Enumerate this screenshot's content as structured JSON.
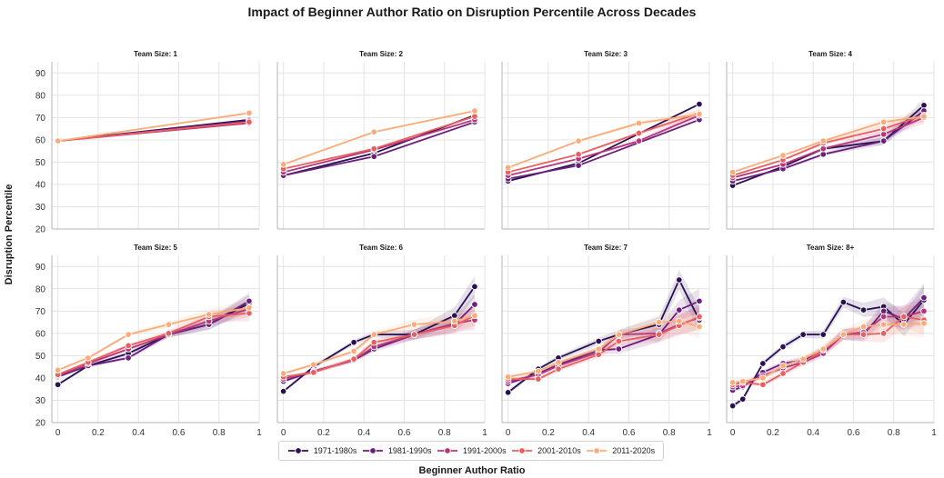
{
  "chart_data": {
    "type": "line",
    "title": "Impact of Beginner Author Ratio on Disruption Percentile Across Decades",
    "xlabel": "Beginner Author Ratio",
    "ylabel": "Disruption Percentile",
    "xlim": [
      -0.03,
      1
    ],
    "ylim": [
      20,
      95
    ],
    "x_ticks": [
      "0",
      "0.2",
      "0.4",
      "0.6",
      "0.8",
      "1"
    ],
    "x_tick_values": [
      0,
      0.2,
      0.4,
      0.6,
      0.8,
      1
    ],
    "y_ticks": [
      "20",
      "30",
      "40",
      "50",
      "60",
      "70",
      "80",
      "90"
    ],
    "y_tick_values": [
      20,
      30,
      40,
      50,
      60,
      70,
      80,
      90
    ],
    "grid": true,
    "legend_position": "bottom-center",
    "series_names": [
      "1971-1980s",
      "1981-1990s",
      "1991-2000s",
      "2001-2010s",
      "2011-2020s"
    ],
    "series_colors": [
      "#2a1052",
      "#6a1f7c",
      "#b8357a",
      "#e95e5e",
      "#fbab77"
    ],
    "panels": [
      {
        "title": "Team Size: 1",
        "series": [
          {
            "name": "1971-1980s",
            "x": [
              0,
              0.95
            ],
            "y": [
              59.5,
              69
            ]
          },
          {
            "name": "1981-1990s",
            "x": [
              0,
              0.95
            ],
            "y": [
              59.5,
              68.5
            ]
          },
          {
            "name": "1991-2000s",
            "x": [
              0,
              0.95
            ],
            "y": [
              59.5,
              67.5
            ]
          },
          {
            "name": "2001-2010s",
            "x": [
              0,
              0.95
            ],
            "y": [
              59.5,
              68
            ]
          },
          {
            "name": "2011-2020s",
            "x": [
              0,
              0.95
            ],
            "y": [
              59.5,
              72
            ]
          }
        ]
      },
      {
        "title": "Team Size: 2",
        "series": [
          {
            "name": "1971-1980s",
            "x": [
              0,
              0.45,
              0.95
            ],
            "y": [
              44,
              54,
              71
            ]
          },
          {
            "name": "1981-1990s",
            "x": [
              0,
              0.45,
              0.95
            ],
            "y": [
              44,
              52.5,
              68
            ]
          },
          {
            "name": "1991-2000s",
            "x": [
              0,
              0.45,
              0.95
            ],
            "y": [
              45.5,
              55.5,
              69
            ]
          },
          {
            "name": "2001-2010s",
            "x": [
              0,
              0.45,
              0.95
            ],
            "y": [
              47,
              56,
              70.5
            ]
          },
          {
            "name": "2011-2020s",
            "x": [
              0,
              0.45,
              0.95
            ],
            "y": [
              49,
              63.5,
              73
            ]
          }
        ]
      },
      {
        "title": "Team Size: 3",
        "series": [
          {
            "name": "1971-1980s",
            "x": [
              0,
              0.35,
              0.95
            ],
            "y": [
              41.5,
              49.5,
              76
            ]
          },
          {
            "name": "1981-1990s",
            "x": [
              0,
              0.35,
              0.95
            ],
            "y": [
              42.5,
              48.5,
              69
            ]
          },
          {
            "name": "1991-2000s",
            "x": [
              0,
              0.35,
              0.65,
              0.95
            ],
            "y": [
              44,
              51.5,
              59.5,
              71
            ]
          },
          {
            "name": "2001-2010s",
            "x": [
              0,
              0.35,
              0.65,
              0.95
            ],
            "y": [
              45.5,
              53.5,
              63,
              72
            ]
          },
          {
            "name": "2011-2020s",
            "x": [
              0,
              0.35,
              0.65,
              0.95
            ],
            "y": [
              47.5,
              59.5,
              67.5,
              71.5
            ]
          }
        ]
      },
      {
        "title": "Team Size: 4",
        "series": [
          {
            "name": "1971-1980s",
            "x": [
              0,
              0.25,
              0.45,
              0.75,
              0.95
            ],
            "y": [
              39.5,
              48,
              56,
              59.5,
              75.5
            ]
          },
          {
            "name": "1981-1990s",
            "x": [
              0,
              0.25,
              0.45,
              0.75,
              0.95
            ],
            "y": [
              41.5,
              47,
              53.5,
              59.5,
              73
            ]
          },
          {
            "name": "1991-2000s",
            "x": [
              0,
              0.25,
              0.45,
              0.75,
              0.95
            ],
            "y": [
              43,
              49,
              56,
              62.5,
              70
            ]
          },
          {
            "name": "2001-2010s",
            "x": [
              0,
              0.25,
              0.45,
              0.75,
              0.95
            ],
            "y": [
              44,
              51,
              58.5,
              65,
              71
            ]
          },
          {
            "name": "2011-2020s",
            "x": [
              0,
              0.25,
              0.45,
              0.75,
              0.95
            ],
            "y": [
              45.5,
              53,
              59.5,
              68,
              70.5
            ]
          }
        ]
      },
      {
        "title": "Team Size: 5",
        "series": [
          {
            "name": "1971-1980s",
            "x": [
              0,
              0.15,
              0.35,
              0.55,
              0.75,
              0.95
            ],
            "y": [
              37,
              45.5,
              51,
              59.5,
              64,
              73.5
            ]
          },
          {
            "name": "1981-1990s",
            "x": [
              0,
              0.15,
              0.35,
              0.55,
              0.75,
              0.95
            ],
            "y": [
              40.5,
              45.5,
              49,
              59.5,
              64,
              74.5
            ]
          },
          {
            "name": "1991-2000s",
            "x": [
              0,
              0.15,
              0.35,
              0.55,
              0.75,
              0.95
            ],
            "y": [
              41,
              46.5,
              53,
              59.5,
              65.5,
              71
            ]
          },
          {
            "name": "2001-2010s",
            "x": [
              0,
              0.15,
              0.35,
              0.55,
              0.75,
              0.95
            ],
            "y": [
              41.5,
              47,
              54.5,
              60,
              67.5,
              69
            ]
          },
          {
            "name": "2011-2020s",
            "x": [
              0,
              0.15,
              0.35,
              0.55,
              0.75,
              0.95
            ],
            "y": [
              43.5,
              49,
              59.5,
              64,
              68.5,
              71.5
            ]
          }
        ]
      },
      {
        "title": "Team Size: 6",
        "series": [
          {
            "name": "1971-1980s",
            "x": [
              0,
              0.15,
              0.35,
              0.45,
              0.65,
              0.85,
              0.95
            ],
            "y": [
              34,
              45,
              56,
              59.5,
              59.5,
              68,
              81
            ]
          },
          {
            "name": "1981-1990s",
            "x": [
              0,
              0.15,
              0.35,
              0.45,
              0.65,
              0.85,
              0.95
            ],
            "y": [
              38.5,
              43,
              48,
              53,
              59.5,
              64,
              73
            ]
          },
          {
            "name": "1991-2000s",
            "x": [
              0,
              0.15,
              0.35,
              0.45,
              0.65,
              0.85,
              0.95
            ],
            "y": [
              39.5,
              43,
              48,
              54,
              59.5,
              64.5,
              66
            ]
          },
          {
            "name": "2001-2010s",
            "x": [
              0,
              0.15,
              0.35,
              0.45,
              0.65,
              0.85,
              0.95
            ],
            "y": [
              40.5,
              42.5,
              48.5,
              56,
              59.5,
              63.5,
              68
            ]
          },
          {
            "name": "2011-2020s",
            "x": [
              0,
              0.15,
              0.35,
              0.45,
              0.65,
              0.85,
              0.95
            ],
            "y": [
              42,
              46,
              52,
              59.5,
              64,
              65.5,
              68
            ]
          }
        ]
      },
      {
        "title": "Team Size: 7",
        "series": [
          {
            "name": "1971-1980s",
            "x": [
              0,
              0.15,
              0.25,
              0.45,
              0.55,
              0.75,
              0.85,
              0.95
            ],
            "y": [
              33.5,
              44,
              49,
              56.5,
              59.5,
              64,
              84,
              66
            ]
          },
          {
            "name": "1981-1990s",
            "x": [
              0,
              0.15,
              0.25,
              0.45,
              0.55,
              0.75,
              0.85,
              0.95
            ],
            "y": [
              37.5,
              42,
              46,
              52.5,
              53,
              59.5,
              70.5,
              74.5
            ]
          },
          {
            "name": "1991-2000s",
            "x": [
              0,
              0.15,
              0.25,
              0.45,
              0.55,
              0.75,
              0.85,
              0.95
            ],
            "y": [
              38.5,
              41.5,
              45.5,
              51.5,
              59.5,
              60,
              64,
              67
            ]
          },
          {
            "name": "2001-2010s",
            "x": [
              0,
              0.15,
              0.25,
              0.45,
              0.55,
              0.75,
              0.85,
              0.95
            ],
            "y": [
              39.5,
              39.5,
              44,
              50.5,
              56.5,
              59.5,
              63.5,
              67.5
            ]
          },
          {
            "name": "2011-2020s",
            "x": [
              0,
              0.15,
              0.25,
              0.45,
              0.55,
              0.75,
              0.85,
              0.95
            ],
            "y": [
              40.5,
              43,
              47,
              53,
              59.5,
              65,
              65.5,
              63
            ]
          }
        ]
      },
      {
        "title": "Team Size: 8+",
        "series": [
          {
            "name": "1971-1980s",
            "x": [
              0,
              0.05,
              0.15,
              0.25,
              0.35,
              0.45,
              0.55,
              0.65,
              0.75,
              0.85,
              0.95
            ],
            "y": [
              27.5,
              30.5,
              46.5,
              54,
              59.5,
              59.5,
              74,
              70.5,
              72,
              64,
              75
            ]
          },
          {
            "name": "1981-1990s",
            "x": [
              0,
              0.05,
              0.15,
              0.25,
              0.35,
              0.45,
              0.55,
              0.65,
              0.75,
              0.85,
              0.95
            ],
            "y": [
              34.5,
              36,
              42.5,
              46.5,
              48,
              52,
              59.5,
              59.5,
              70,
              66.5,
              76
            ]
          },
          {
            "name": "1991-2000s",
            "x": [
              0,
              0.05,
              0.15,
              0.25,
              0.35,
              0.45,
              0.55,
              0.65,
              0.75,
              0.85,
              0.95
            ],
            "y": [
              36,
              36.5,
              41,
              44.5,
              47,
              51,
              59.5,
              60.5,
              67.5,
              67.5,
              70
            ]
          },
          {
            "name": "2001-2010s",
            "x": [
              0,
              0.05,
              0.15,
              0.25,
              0.35,
              0.45,
              0.55,
              0.65,
              0.75,
              0.85,
              0.95
            ],
            "y": [
              37,
              38,
              37,
              42,
              47,
              52.5,
              59.5,
              59.5,
              60,
              67.5,
              66
            ]
          },
          {
            "name": "2011-2020s",
            "x": [
              0,
              0.05,
              0.15,
              0.25,
              0.35,
              0.45,
              0.55,
              0.65,
              0.75,
              0.85,
              0.95
            ],
            "y": [
              38,
              38.5,
              40,
              45.5,
              48.5,
              53,
              59.5,
              63,
              64,
              64,
              64.5
            ]
          }
        ]
      }
    ]
  }
}
